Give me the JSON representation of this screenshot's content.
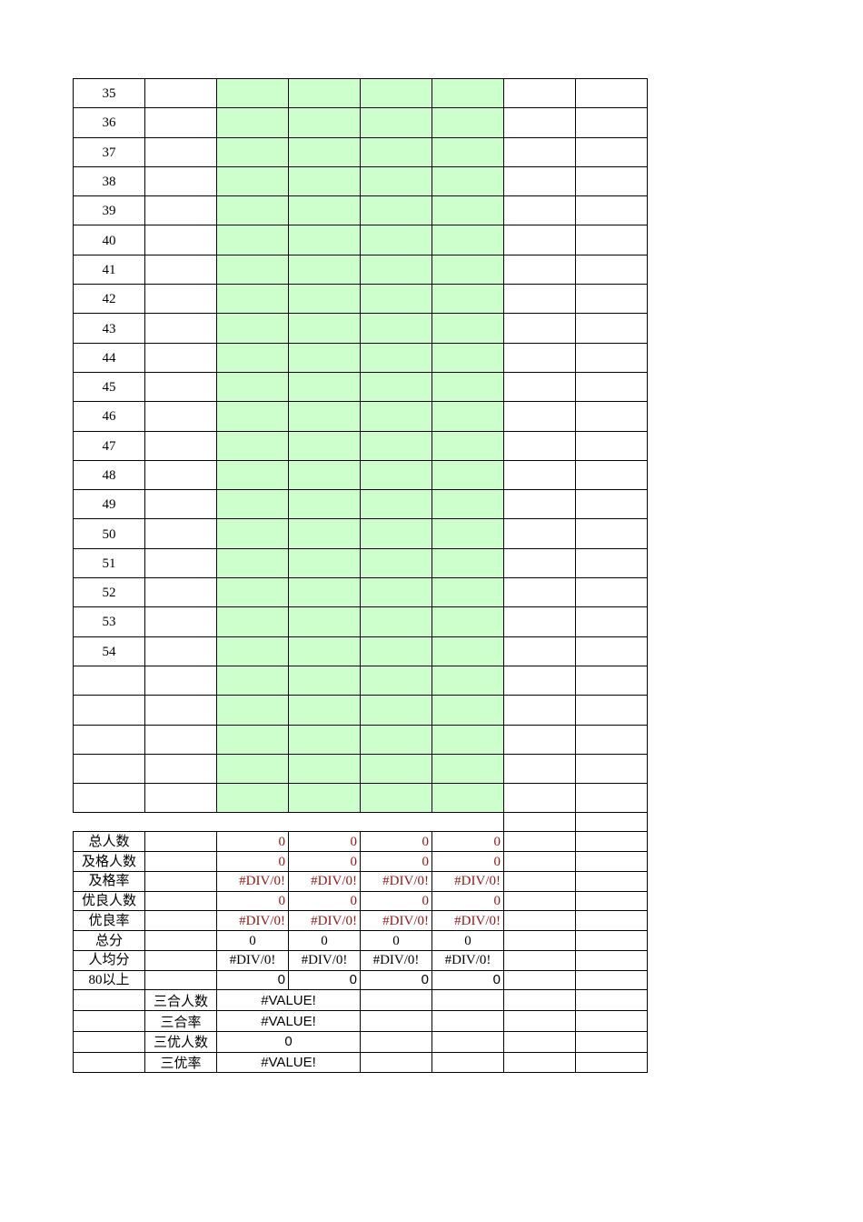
{
  "colors": {
    "input_fill": "#ccffcc",
    "formula_text": "#8b1a1a",
    "border": "#000000"
  },
  "rows": [
    "35",
    "36",
    "37",
    "38",
    "39",
    "40",
    "41",
    "42",
    "43",
    "44",
    "45",
    "46",
    "47",
    "48",
    "49",
    "50",
    "51",
    "52",
    "53",
    "54",
    "",
    "",
    "",
    "",
    ""
  ],
  "summary": [
    {
      "label": "总人数",
      "values": [
        "0",
        "0",
        "0",
        "0"
      ],
      "style": "red-right"
    },
    {
      "label": "及格人数",
      "values": [
        "0",
        "0",
        "0",
        "0"
      ],
      "style": "red-right"
    },
    {
      "label": "及格率",
      "values": [
        "#DIV/0!",
        "#DIV/0!",
        "#DIV/0!",
        "#DIV/0!"
      ],
      "style": "red-right"
    },
    {
      "label": "优良人数",
      "values": [
        "0",
        "0",
        "0",
        "0"
      ],
      "style": "red-right"
    },
    {
      "label": "优良率",
      "values": [
        "#DIV/0!",
        "#DIV/0!",
        "#DIV/0!",
        "#DIV/0!"
      ],
      "style": "red-right"
    },
    {
      "label": "总分",
      "values": [
        "0",
        "0",
        "0",
        "0"
      ],
      "style": "center"
    },
    {
      "label": "人均分",
      "values": [
        "#DIV/0!",
        "#DIV/0!",
        "#DIV/0!",
        "#DIV/0!"
      ],
      "style": "center"
    },
    {
      "label": "80以上",
      "values": [
        "0",
        "0",
        "0",
        "0"
      ],
      "style": "sans-right"
    }
  ],
  "combined": [
    {
      "label": "三合人数",
      "value": "#VALUE!"
    },
    {
      "label": "三合率",
      "value": "#VALUE!"
    },
    {
      "label": "三优人数",
      "value": "0"
    },
    {
      "label": "三优率",
      "value": "#VALUE!"
    }
  ]
}
